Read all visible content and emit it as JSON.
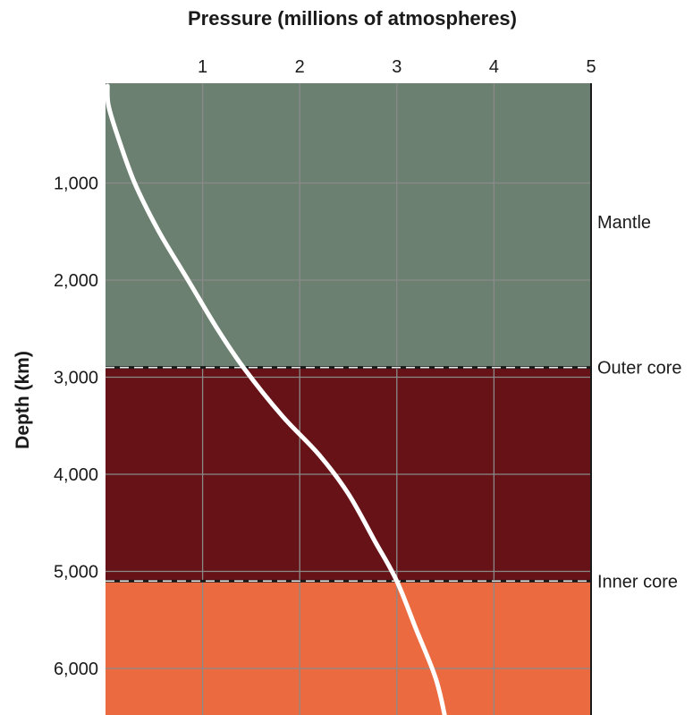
{
  "chart_data": {
    "type": "line",
    "title": "",
    "xlabel": "Pressure (millions of atmospheres)",
    "ylabel": "Depth (km)",
    "xlim": [
      0,
      5
    ],
    "ylim": [
      0,
      6400
    ],
    "y_inverted": true,
    "x_position": "top",
    "grid": true,
    "x_ticks": [
      1,
      2,
      3,
      4,
      5
    ],
    "x_tick_labels": [
      "1",
      "2",
      "3",
      "4",
      "5"
    ],
    "y_ticks": [
      1000,
      2000,
      3000,
      4000,
      5000,
      6000
    ],
    "y_tick_labels": [
      "1,000",
      "2,000",
      "3,000",
      "4,000",
      "5,000",
      "6,000"
    ],
    "layers": [
      {
        "name": "Mantle",
        "from": 0,
        "to": 2900,
        "color": "#6b8070"
      },
      {
        "name": "Outer core",
        "from": 2900,
        "to": 5100,
        "color": "#661216"
      },
      {
        "name": "Inner core",
        "from": 5100,
        "to": 6400,
        "color": "#ec6a40"
      }
    ],
    "layer_labels": [
      {
        "text": "Mantle",
        "depth": 1400
      },
      {
        "text": "Outer core",
        "depth": 2900
      },
      {
        "text": "Inner core",
        "depth": 5100
      }
    ],
    "series": [
      {
        "line_color": "#ffffff",
        "points": [
          {
            "pressure": 0.02,
            "depth": 0
          },
          {
            "pressure": 0.03,
            "depth": 200
          },
          {
            "pressure": 0.12,
            "depth": 500
          },
          {
            "pressure": 0.3,
            "depth": 1000
          },
          {
            "pressure": 0.55,
            "depth": 1500
          },
          {
            "pressure": 0.85,
            "depth": 2000
          },
          {
            "pressure": 1.15,
            "depth": 2500
          },
          {
            "pressure": 1.42,
            "depth": 2900
          },
          {
            "pressure": 1.82,
            "depth": 3400
          },
          {
            "pressure": 2.2,
            "depth": 3800
          },
          {
            "pressure": 2.5,
            "depth": 4200
          },
          {
            "pressure": 2.78,
            "depth": 4700
          },
          {
            "pressure": 3.0,
            "depth": 5100
          },
          {
            "pressure": 3.2,
            "depth": 5600
          },
          {
            "pressure": 3.4,
            "depth": 6100
          },
          {
            "pressure": 3.5,
            "depth": 6400
          }
        ]
      }
    ]
  }
}
